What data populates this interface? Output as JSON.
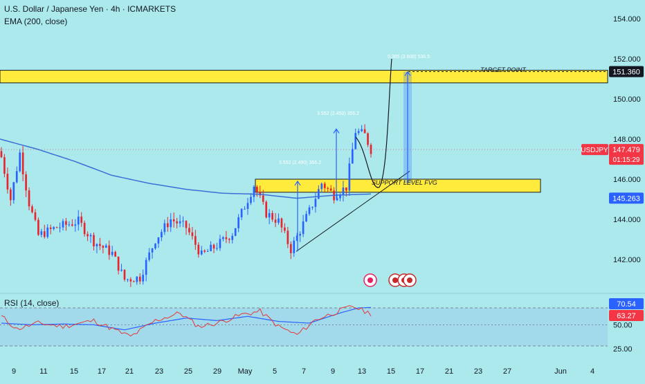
{
  "header": {
    "title": "U.S. Dollar / Japanese Yen · 4h · ICMARKETS",
    "indicator": "EMA (200, close)"
  },
  "rsi": {
    "title": "RSI (14, close)",
    "levels": [
      70.54,
      63.27,
      50.0,
      25.0
    ],
    "ma_badge": "70.54",
    "value_badge": "63.27"
  },
  "annotations": {
    "target_point": "TARGET POINT",
    "support_level": "SUPPORT LEVEL  FVG",
    "measure_1": "3.552 (2.490) 355.2",
    "measure_2": "3.552 (2.450) 355.2",
    "measure_3": "5.365 (3.608) 536.5"
  },
  "price_axis": {
    "ticks": [
      "154.000",
      "152.000",
      "150.000",
      "148.000",
      "146.000",
      "144.000",
      "142.000"
    ],
    "target_badge": "151.360",
    "symbol_badge": "USDJPY",
    "last_price": "147.479",
    "countdown": "01:15:29",
    "ema_badge": "145.263"
  },
  "time_axis": {
    "ticks": [
      "9",
      "11",
      "15",
      "17",
      "21",
      "23",
      "25",
      "29",
      "May",
      "5",
      "7",
      "9",
      "13",
      "15",
      "17",
      "21",
      "23",
      "27",
      "Jun",
      "4"
    ]
  },
  "colors": {
    "background": "#abe9ec",
    "up_candle": "#2962ff",
    "down_candle": "#e8252e",
    "ema_line": "#3a6fd8",
    "zone_fill": "#ffeb3b",
    "rsi_line": "#e53935",
    "rsi_ma": "#2962ff",
    "last_price_badge": "#f23645",
    "ema_badge": "#2962ff",
    "target_badge": "#131722"
  },
  "chart_data": {
    "type": "candlestick",
    "title": "U.S. Dollar / Japanese Yen · 4h · ICMARKETS",
    "ylim": [
      140.5,
      155
    ],
    "zones": [
      {
        "label": "TARGET POINT",
        "low": 150.8,
        "high": 151.36
      },
      {
        "label": "SUPPORT LEVEL  FVG",
        "low": 145.35,
        "high": 146.0
      }
    ],
    "ema200_anchors": [
      {
        "t": 0,
        "v": 148.0
      },
      {
        "t": 10,
        "v": 147.5
      },
      {
        "t": 20,
        "v": 146.9
      },
      {
        "t": 30,
        "v": 146.2
      },
      {
        "t": 40,
        "v": 145.8
      },
      {
        "t": 50,
        "v": 145.5
      },
      {
        "t": 60,
        "v": 145.3
      },
      {
        "t": 70,
        "v": 145.25
      },
      {
        "t": 80,
        "v": 145.05
      },
      {
        "t": 90,
        "v": 145.2
      },
      {
        "t": 100,
        "v": 145.263
      }
    ],
    "close_anchors": [
      {
        "t": 0,
        "v": 147.1
      },
      {
        "t": 3,
        "v": 145.0
      },
      {
        "t": 6,
        "v": 147.3
      },
      {
        "t": 9,
        "v": 144.8
      },
      {
        "t": 12,
        "v": 143.2
      },
      {
        "t": 18,
        "v": 143.6
      },
      {
        "t": 25,
        "v": 143.9
      },
      {
        "t": 30,
        "v": 142.9
      },
      {
        "t": 36,
        "v": 142.3
      },
      {
        "t": 40,
        "v": 141.0
      },
      {
        "t": 45,
        "v": 141.1
      },
      {
        "t": 50,
        "v": 143.0
      },
      {
        "t": 55,
        "v": 144.0
      },
      {
        "t": 60,
        "v": 143.6
      },
      {
        "t": 65,
        "v": 142.2
      },
      {
        "t": 70,
        "v": 142.7
      },
      {
        "t": 75,
        "v": 143.3
      },
      {
        "t": 80,
        "v": 145.0
      },
      {
        "t": 82,
        "v": 145.7
      },
      {
        "t": 86,
        "v": 144.3
      },
      {
        "t": 90,
        "v": 143.9
      },
      {
        "t": 94,
        "v": 142.5
      },
      {
        "t": 100,
        "v": 144.4
      },
      {
        "t": 104,
        "v": 145.8
      },
      {
        "t": 108,
        "v": 145.2
      },
      {
        "t": 112,
        "v": 145.6
      },
      {
        "t": 115,
        "v": 148.4
      },
      {
        "t": 118,
        "v": 148.2
      },
      {
        "t": 120,
        "v": 147.479
      }
    ],
    "last_price": 147.479,
    "target": 151.36,
    "ema200_last": 145.263,
    "rsi": {
      "name": "RSI (14, close)",
      "ma_last": 70.54,
      "last": 63.27,
      "levels": [
        70,
        50,
        25
      ]
    }
  }
}
